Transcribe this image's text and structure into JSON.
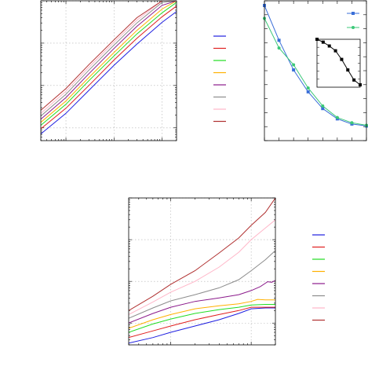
{
  "chart_data": [
    {
      "type": "line",
      "x_scale": "log",
      "y_scale": "log",
      "xlim": [
        0.03,
        20
      ],
      "ylim": [
        0.5,
        1000
      ],
      "grid": true,
      "legend_position": "right",
      "legend_labels_visible": false,
      "series": [
        {
          "color": "#1f1fe0",
          "x": [
            0.03,
            0.1,
            0.3,
            1,
            3,
            10,
            20
          ],
          "y": [
            0.72,
            2.2,
            7.7,
            30,
            95,
            310,
            560
          ]
        },
        {
          "color": "#e01f1f",
          "x": [
            0.03,
            0.1,
            0.3,
            1,
            3,
            10,
            20
          ],
          "y": [
            0.95,
            2.9,
            10,
            40,
            130,
            420,
            750
          ]
        },
        {
          "color": "#22dd22",
          "x": [
            0.03,
            0.1,
            0.3,
            1,
            3,
            10,
            20
          ],
          "y": [
            1.15,
            3.6,
            13,
            50,
            165,
            520,
            920
          ]
        },
        {
          "color": "#ffb000",
          "x": [
            0.03,
            0.1,
            0.3,
            1,
            3,
            10,
            20
          ],
          "y": [
            1.35,
            4.3,
            15.5,
            60,
            200,
            640,
            1000
          ]
        },
        {
          "color": "#8b1a8b",
          "x": [
            0.03,
            0.1,
            0.3,
            1,
            3,
            10,
            20
          ],
          "y": [
            1.6,
            5.2,
            19,
            75,
            250,
            780,
            1000
          ]
        },
        {
          "color": "#8c8c8c",
          "x": [
            0.03,
            0.1,
            0.3,
            1,
            3,
            10,
            20
          ],
          "y": [
            1.9,
            6.2,
            23,
            90,
            300,
            920,
            1000
          ]
        },
        {
          "color": "#ffb6c8",
          "x": [
            0.03,
            0.1,
            0.3,
            1,
            3,
            10,
            20
          ],
          "y": [
            2.2,
            7.3,
            27,
            105,
            350,
            1000,
            1000
          ]
        },
        {
          "color": "#b03030",
          "x": [
            0.03,
            0.1,
            0.3,
            1,
            3,
            10,
            20
          ],
          "y": [
            2.6,
            8.5,
            31,
            120,
            400,
            1000,
            1000
          ]
        }
      ]
    },
    {
      "type": "line",
      "grid": false,
      "legend_position": "top-right",
      "series": [
        {
          "color": "#3a6fd8",
          "marker": "square",
          "x": [
            0,
            1,
            2,
            3,
            4,
            5,
            6,
            7
          ],
          "y": [
            1.0,
            0.73,
            0.5,
            0.33,
            0.2,
            0.12,
            0.08,
            0.065
          ]
        },
        {
          "color": "#3cc878",
          "marker": "circle",
          "x": [
            0,
            1,
            2,
            3,
            4,
            5,
            6,
            7
          ],
          "y": [
            0.9,
            0.67,
            0.54,
            0.36,
            0.22,
            0.13,
            0.09,
            0.07
          ]
        }
      ],
      "inset": {
        "type": "line",
        "series": [
          {
            "color": "#000000",
            "marker": "square",
            "x": [
              0,
              1,
              2,
              3,
              4,
              5,
              6,
              7
            ],
            "y": [
              1.0,
              0.94,
              0.86,
              0.76,
              0.58,
              0.36,
              0.15,
              0.05
            ]
          }
        ]
      }
    },
    {
      "type": "line",
      "x_scale": "log",
      "y_scale": "log",
      "xlim": [
        0.03,
        2
      ],
      "ylim": [
        0.3,
        1000
      ],
      "grid": true,
      "legend_position": "right",
      "legend_labels_visible": false,
      "series": [
        {
          "color": "#1f1fe0",
          "x": [
            0.03,
            0.06,
            0.1,
            0.2,
            0.4,
            0.7,
            1,
            1.5,
            2
          ],
          "y": [
            0.33,
            0.45,
            0.6,
            0.85,
            1.2,
            1.7,
            2.2,
            2.3,
            2.3
          ]
        },
        {
          "color": "#e01f1f",
          "x": [
            0.03,
            0.06,
            0.1,
            0.2,
            0.4,
            0.7,
            1,
            1.5,
            2
          ],
          "y": [
            0.45,
            0.65,
            0.85,
            1.2,
            1.6,
            2.0,
            2.4,
            2.4,
            2.4
          ]
        },
        {
          "color": "#22dd22",
          "x": [
            0.03,
            0.06,
            0.1,
            0.2,
            0.4,
            0.7,
            1,
            1.5,
            2
          ],
          "y": [
            0.6,
            0.95,
            1.25,
            1.7,
            2.1,
            2.4,
            2.7,
            2.8,
            2.8
          ]
        },
        {
          "color": "#ffb000",
          "x": [
            0.03,
            0.06,
            0.1,
            0.2,
            0.4,
            0.7,
            1,
            1.2,
            1.5,
            2
          ],
          "y": [
            0.75,
            1.2,
            1.6,
            2.2,
            2.6,
            2.9,
            3.3,
            3.7,
            3.6,
            3.6
          ]
        },
        {
          "color": "#8b1a8b",
          "x": [
            0.03,
            0.06,
            0.1,
            0.2,
            0.4,
            0.7,
            1,
            1.3,
            1.6,
            1.8,
            2
          ],
          "y": [
            1.0,
            1.7,
            2.4,
            3.3,
            4.0,
            4.8,
            6.0,
            7.5,
            9.8,
            9.5,
            10.5
          ]
        },
        {
          "color": "#8c8c8c",
          "x": [
            0.03,
            0.06,
            0.1,
            0.2,
            0.4,
            0.7,
            1,
            1.5,
            2
          ],
          "y": [
            1.3,
            2.3,
            3.4,
            4.8,
            7,
            11,
            18,
            33,
            55
          ]
        },
        {
          "color": "#ffb6c8",
          "x": [
            0.03,
            0.06,
            0.1,
            0.2,
            0.4,
            0.7,
            1,
            1.5,
            2
          ],
          "y": [
            1.6,
            3.2,
            5.5,
            10,
            22,
            50,
            100,
            190,
            300
          ]
        },
        {
          "color": "#b03030",
          "x": [
            0.03,
            0.06,
            0.1,
            0.2,
            0.4,
            0.7,
            1,
            1.5,
            2
          ],
          "y": [
            2.0,
            4.4,
            8.5,
            18,
            48,
            110,
            220,
            450,
            1000
          ]
        }
      ]
    }
  ]
}
